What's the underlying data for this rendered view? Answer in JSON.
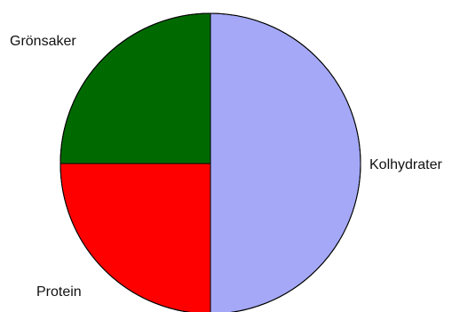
{
  "chart_data": {
    "type": "pie",
    "title": "",
    "slices": [
      {
        "label": "Kolhydrater",
        "value": 50,
        "color": "#a4a8f6"
      },
      {
        "label": "Protein",
        "value": 25,
        "color": "#ff0000"
      },
      {
        "label": "Grönsaker",
        "value": 25,
        "color": "#006a00"
      }
    ],
    "start_angle_deg": 90,
    "direction": "clockwise",
    "legend": "none",
    "outline_color": "#000000"
  }
}
